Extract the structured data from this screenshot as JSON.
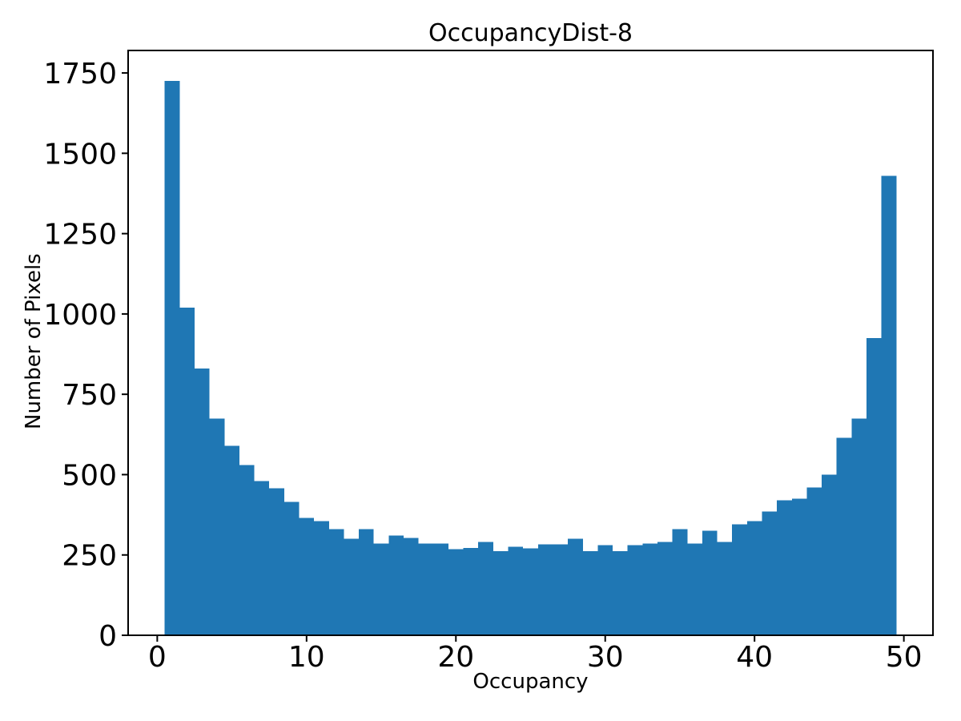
{
  "chart_data": {
    "type": "bar",
    "subtype": "histogram",
    "title": "OccupancyDist-8",
    "xlabel": "Occupancy",
    "ylabel": "Number of Pixels",
    "bar_color": "#1f77b4",
    "axis_color": "#000000",
    "background_color": "#ffffff",
    "grid": false,
    "legend": null,
    "bin_start": 0.5,
    "bin_width": 1,
    "xlim": [
      -1.95,
      51.95
    ],
    "ylim": [
      0,
      1820
    ],
    "xticks": [
      0,
      10,
      20,
      30,
      40,
      50
    ],
    "xtick_labels": [
      "0",
      "10",
      "20",
      "30",
      "40",
      "50"
    ],
    "yticks": [
      0,
      250,
      500,
      750,
      1000,
      1250,
      1500,
      1750
    ],
    "ytick_labels": [
      "0",
      "250",
      "500",
      "750",
      "1000",
      "1250",
      "1500",
      "1750"
    ],
    "values": [
      1725,
      1020,
      830,
      675,
      590,
      530,
      480,
      458,
      415,
      365,
      355,
      330,
      300,
      330,
      285,
      310,
      303,
      285,
      285,
      268,
      272,
      290,
      262,
      275,
      270,
      283,
      283,
      300,
      262,
      280,
      262,
      280,
      285,
      290,
      330,
      285,
      325,
      290,
      345,
      355,
      385,
      420,
      425,
      460,
      500,
      615,
      675,
      925,
      1430
    ]
  }
}
